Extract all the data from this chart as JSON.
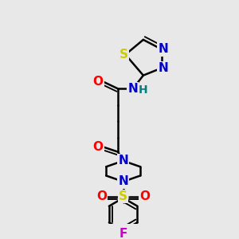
{
  "bg_color": "#e8e8e8",
  "atom_colors": {
    "N": "#0000cc",
    "O": "#ff0000",
    "S_ring": "#cccc00",
    "S_sulfonyl": "#cccc00",
    "F": "#cc00cc",
    "H": "#008080",
    "C": "#000000"
  },
  "bond_color": "#000000",
  "bond_width": 1.8,
  "font_size_atom": 11,
  "fig_width": 3.0,
  "fig_height": 3.0,
  "dpi": 100
}
